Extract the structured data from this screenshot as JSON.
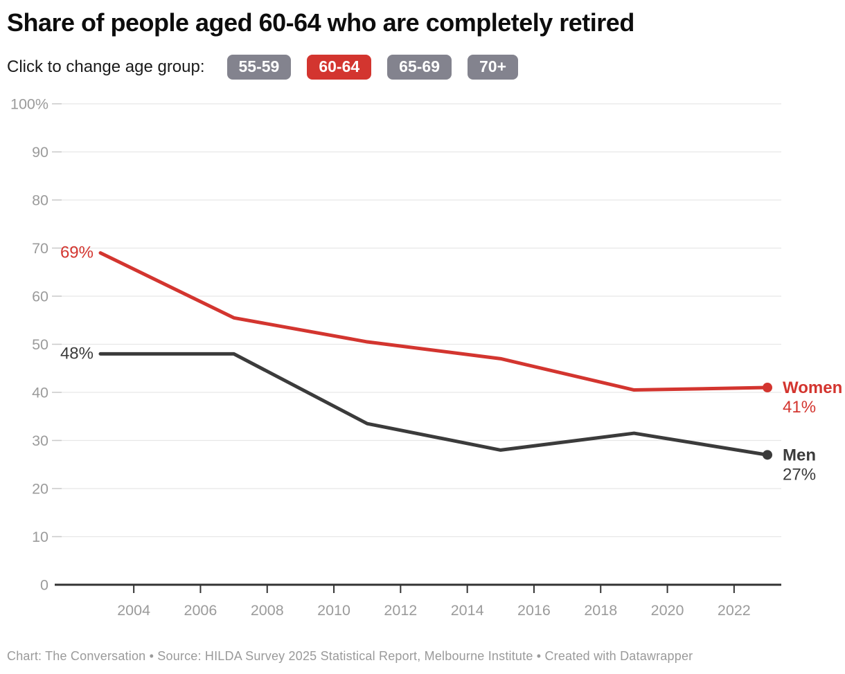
{
  "header": {
    "title": "Share of people aged 60-64 who are completely retired",
    "subtitle_label": "Click to change age group:"
  },
  "age_buttons": [
    {
      "label": "55-59",
      "active": false
    },
    {
      "label": "60-64",
      "active": true
    },
    {
      "label": "65-69",
      "active": false
    },
    {
      "label": "70+",
      "active": false
    }
  ],
  "colors": {
    "accent_red": "#d3352f",
    "dark_line": "#3b3b3b",
    "button_gray": "#83838e",
    "axis_text": "#9b9b9b",
    "gridline": "#e7e7e7",
    "axis_line": "#333333",
    "footer_text": "#9a9a9a"
  },
  "chart_data": {
    "type": "line",
    "title": "Share of people aged 60-64 who are completely retired",
    "x": [
      2003,
      2007,
      2011,
      2015,
      2019,
      2023
    ],
    "series": [
      {
        "name": "Women",
        "values": [
          69,
          55.5,
          50.5,
          47,
          40.5,
          41
        ],
        "color": "#d3352f",
        "start_label": "69%",
        "end_label": "41%"
      },
      {
        "name": "Men",
        "values": [
          48,
          48,
          33.5,
          28,
          31.5,
          27
        ],
        "color": "#3b3b3b",
        "start_label": "48%",
        "end_label": "27%"
      }
    ],
    "y_axis": {
      "min": 0,
      "max": 100,
      "step": 10,
      "top_tick_label": "100%"
    },
    "x_ticks": [
      2004,
      2006,
      2008,
      2010,
      2012,
      2014,
      2016,
      2018,
      2020,
      2022
    ],
    "grid": true,
    "legend_position": "line-end-labels"
  },
  "footer": {
    "text": "Chart: The Conversation • Source: HILDA Survey 2025 Statistical Report, Melbourne Institute • Created with Datawrapper"
  }
}
